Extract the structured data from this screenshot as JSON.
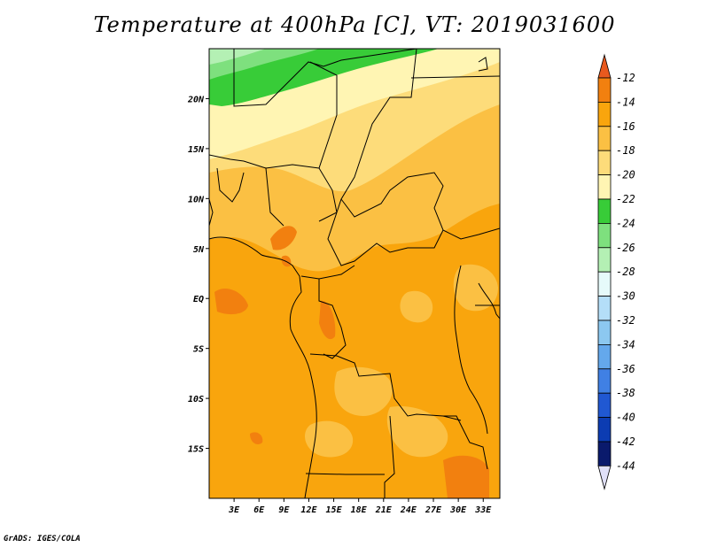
{
  "title": "Temperature at 400hPa [C], VT: 2019031600",
  "credit": "GrADS: IGES/COLA",
  "map": {
    "lon_range": [
      0,
      35
    ],
    "lat_range": [
      -20,
      25
    ],
    "lat_labels": [
      {
        "lat": 20,
        "label": "20N"
      },
      {
        "lat": 15,
        "label": "15N"
      },
      {
        "lat": 10,
        "label": "10N"
      },
      {
        "lat": 5,
        "label": "5N"
      },
      {
        "lat": 0,
        "label": "EQ"
      },
      {
        "lat": -5,
        "label": "5S"
      },
      {
        "lat": -10,
        "label": "10S"
      },
      {
        "lat": -15,
        "label": "15S"
      }
    ],
    "lon_labels": [
      {
        "lon": 3,
        "label": "3E"
      },
      {
        "lon": 6,
        "label": "6E"
      },
      {
        "lon": 9,
        "label": "9E"
      },
      {
        "lon": 12,
        "label": "12E"
      },
      {
        "lon": 15,
        "label": "15E"
      },
      {
        "lon": 18,
        "label": "18E"
      },
      {
        "lon": 21,
        "label": "21E"
      },
      {
        "lon": 24,
        "label": "24E"
      },
      {
        "lon": 27,
        "label": "27E"
      },
      {
        "lon": 30,
        "label": "30E"
      },
      {
        "lon": 33,
        "label": "33E"
      }
    ]
  },
  "colorbar": {
    "levels": [
      "-12",
      "-14",
      "-16",
      "-18",
      "-20",
      "-22",
      "-24",
      "-26",
      "-28",
      "-30",
      "-32",
      "-34",
      "-36",
      "-38",
      "-40",
      "-42",
      "-44"
    ],
    "colors": [
      "#e8591e",
      "#f2800f",
      "#f9a50d",
      "#fbc043",
      "#fddc7a",
      "#fff5b3",
      "#38cc38",
      "#7ee07e",
      "#b4f0b4",
      "#e6fafa",
      "#b4def8",
      "#8cc8f0",
      "#64a8ec",
      "#4080e4",
      "#2058d2",
      "#0c3cb2",
      "#0a1a6c",
      "#e0e0f8"
    ]
  }
}
